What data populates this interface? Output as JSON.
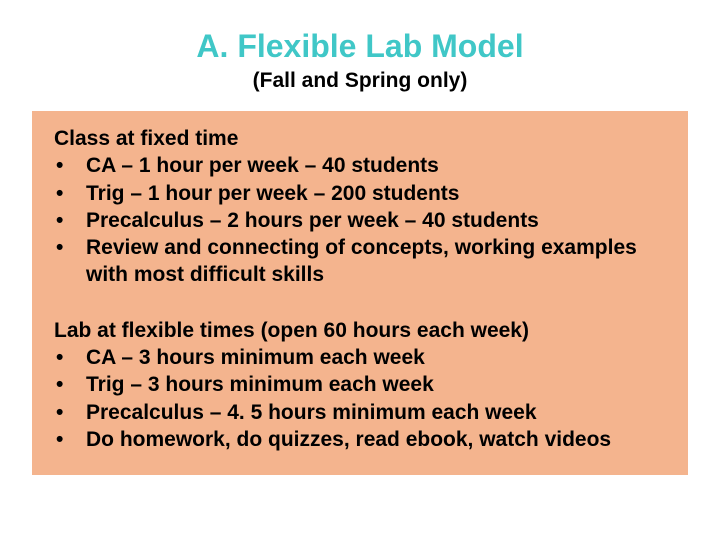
{
  "title": "A.  Flexible Lab Model",
  "subtitle": "(Fall and Spring only)",
  "title_color": "#40c7c7",
  "subtitle_color": "#000000",
  "box_color": "#f4b48e",
  "text_color": "#000000",
  "title_fontsize": 32,
  "subtitle_fontsize": 21,
  "body_fontsize": 21,
  "sections": [
    {
      "heading": "Class at fixed time",
      "bullets": [
        "CA – 1 hour per week  – 40 students",
        "Trig – 1 hour per week – 200 students",
        "Precalculus – 2 hours per week – 40 students",
        "Review and connecting of concepts, working examples with most difficult skills"
      ]
    },
    {
      "heading": "Lab at flexible times (open 60 hours each week)",
      "bullets": [
        "CA – 3 hours minimum each week",
        "Trig – 3 hours minimum each week",
        "Precalculus – 4. 5 hours minimum each week",
        "Do homework, do quizzes, read ebook, watch videos"
      ]
    }
  ]
}
